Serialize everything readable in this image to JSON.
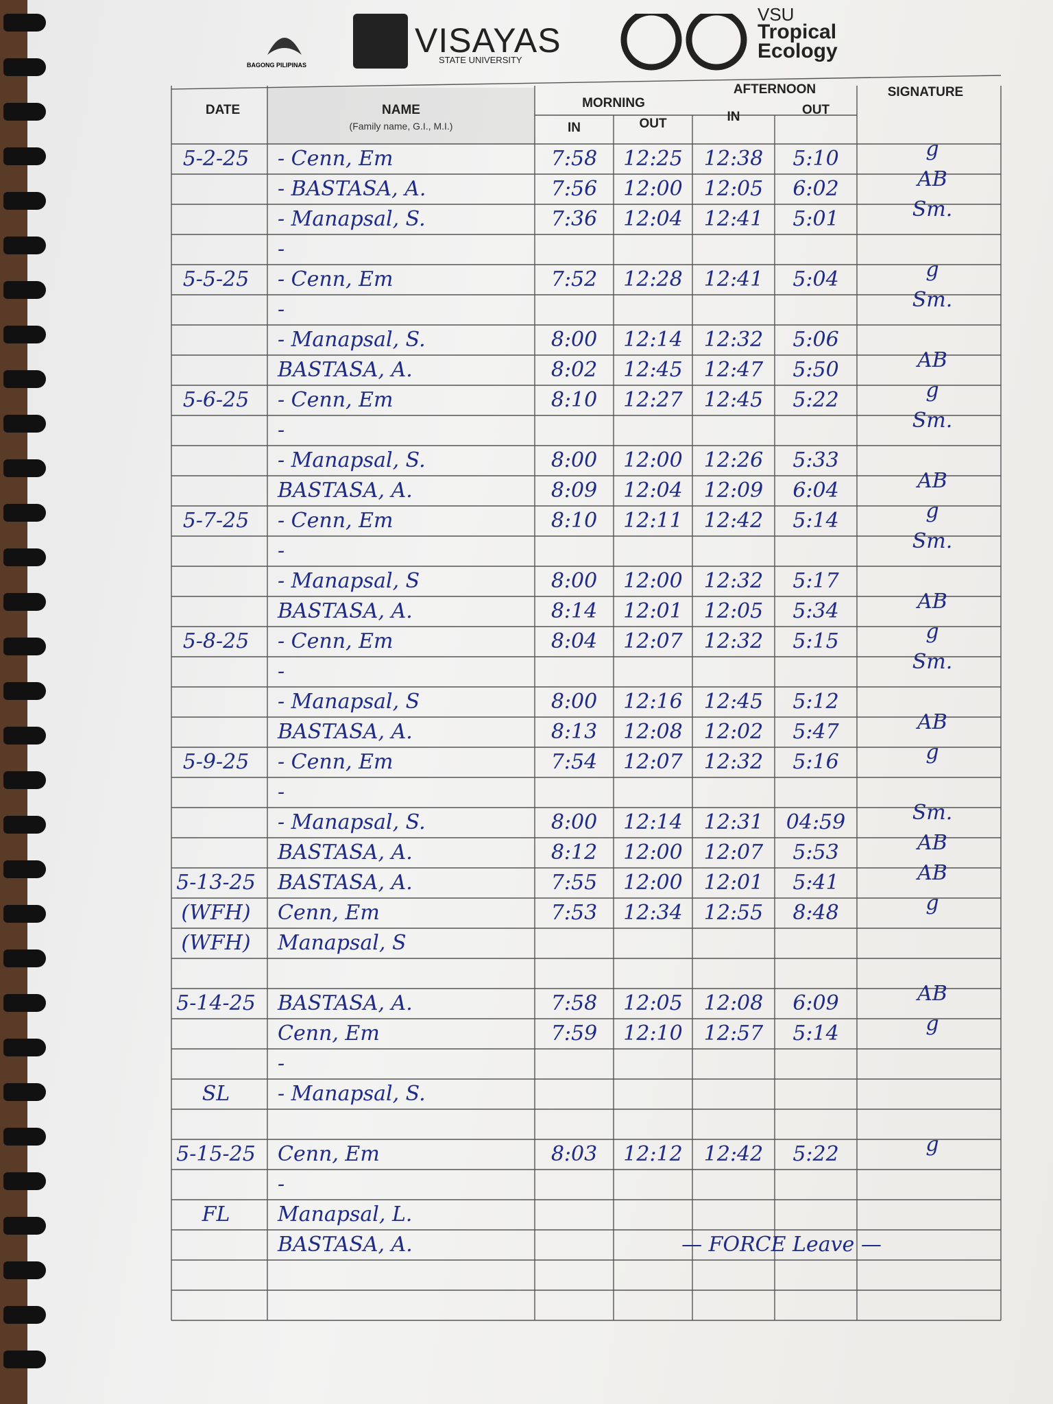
{
  "header": {
    "bagong_pilipinas": "BAGONG PILIPINAS",
    "university": "VISAYAS",
    "university_sub": "STATE UNIVERSITY",
    "unit_prefix": "VSU",
    "unit_line1": "Tropical",
    "unit_line2": "Ecology"
  },
  "table": {
    "headers": {
      "date": "DATE",
      "name": "NAME",
      "name_note": "(Family name, G.I., M.I.)",
      "morning": "MORNING",
      "afternoon": "AFTERNOON",
      "in_out": [
        "IN",
        "OUT",
        "IN",
        "OUT"
      ],
      "signature": "SIGNATURE"
    },
    "rows": [
      {
        "date": "5-2-25",
        "name": "- Cenn, Em",
        "times": [
          "7:58",
          "12:25",
          "12:38",
          "5:10"
        ],
        "signature": "g"
      },
      {
        "name": "- BASTASA, A.",
        "times": [
          "7:56",
          "12:00",
          "12:05",
          "6:02"
        ],
        "signature": "AB"
      },
      {
        "name": "- Manapsal, S.",
        "times": [
          "7:36",
          "12:04",
          "12:41",
          "5:01"
        ],
        "signature": "Sm."
      },
      {
        "name": "-"
      },
      {
        "date": "5-5-25",
        "name": "- Cenn, Em",
        "times": [
          "7:52",
          "12:28",
          "12:41",
          "5:04"
        ],
        "signature": "g"
      },
      {
        "name": "-",
        "signature": "Sm."
      },
      {
        "name": "- Manapsal, S.",
        "times": [
          "8:00",
          "12:14",
          "12:32",
          "5:06"
        ]
      },
      {
        "name": "BASTASA, A.",
        "times": [
          "8:02",
          "12:45",
          "12:47",
          "5:50"
        ],
        "signature": "AB"
      },
      {
        "date": "5-6-25",
        "name": "- Cenn, Em",
        "times": [
          "8:10",
          "12:27",
          "12:45",
          "5:22"
        ],
        "signature": "g"
      },
      {
        "name": "-",
        "signature": "Sm."
      },
      {
        "name": "- Manapsal, S.",
        "times": [
          "8:00",
          "12:00",
          "12:26",
          "5:33"
        ]
      },
      {
        "name": "BASTASA, A.",
        "times": [
          "8:09",
          "12:04",
          "12:09",
          "6:04"
        ],
        "signature": "AB"
      },
      {
        "date": "5-7-25",
        "name": "- Cenn, Em",
        "times": [
          "8:10",
          "12:11",
          "12:42",
          "5:14"
        ],
        "signature": "g"
      },
      {
        "name": "-",
        "signature": "Sm."
      },
      {
        "name": "- Manapsal, S",
        "times": [
          "8:00",
          "12:00",
          "12:32",
          "5:17"
        ]
      },
      {
        "name": "BASTASA, A.",
        "times": [
          "8:14",
          "12:01",
          "12:05",
          "5:34"
        ],
        "signature": "AB"
      },
      {
        "date": "5-8-25",
        "name": "- Cenn, Em",
        "times": [
          "8:04",
          "12:07",
          "12:32",
          "5:15"
        ],
        "signature": "g"
      },
      {
        "name": "-",
        "signature": "Sm."
      },
      {
        "name": "- Manapsal, S",
        "times": [
          "8:00",
          "12:16",
          "12:45",
          "5:12"
        ]
      },
      {
        "name": "BASTASA, A.",
        "times": [
          "8:13",
          "12:08",
          "12:02",
          "5:47"
        ],
        "signature": "AB"
      },
      {
        "date": "5-9-25",
        "name": "- Cenn, Em",
        "times": [
          "7:54",
          "12:07",
          "12:32",
          "5:16"
        ],
        "signature": "g"
      },
      {
        "name": "-"
      },
      {
        "name": "- Manapsal, S.",
        "times": [
          "8:00",
          "12:14",
          "12:31",
          "04:59"
        ],
        "signature": "Sm."
      },
      {
        "name": "BASTASA, A.",
        "times": [
          "8:12",
          "12:00",
          "12:07",
          "5:53"
        ],
        "signature": "AB"
      },
      {
        "date": "5-13-25",
        "name": "BASTASA, A.",
        "times": [
          "7:55",
          "12:00",
          "12:01",
          "5:41"
        ],
        "signature": "AB"
      },
      {
        "date": "(WFH)",
        "name": "Cenn, Em",
        "times": [
          "7:53",
          "12:34",
          "12:55",
          "8:48"
        ],
        "signature": "g"
      },
      {
        "date": "(WFH)",
        "name": "Manapsal, S"
      },
      {},
      {
        "date": "5-14-25",
        "name": "BASTASA, A.",
        "times": [
          "7:58",
          "12:05",
          "12:08",
          "6:09"
        ],
        "signature": "AB"
      },
      {
        "name": "Cenn, Em",
        "times": [
          "7:59",
          "12:10",
          "12:57",
          "5:14"
        ],
        "signature": "g"
      },
      {
        "name": "-"
      },
      {
        "date": "SL",
        "name": "- Manapsal, S."
      },
      {},
      {
        "date": "5-15-25",
        "name": "Cenn, Em",
        "times": [
          "8:03",
          "12:12",
          "12:42",
          "5:22"
        ],
        "signature": "g"
      },
      {
        "name": "-"
      },
      {
        "date": "FL",
        "name": "Manapsal, L."
      },
      {
        "name": "BASTASA, A.",
        "note": "— FORCE Leave —"
      },
      {},
      {}
    ]
  }
}
